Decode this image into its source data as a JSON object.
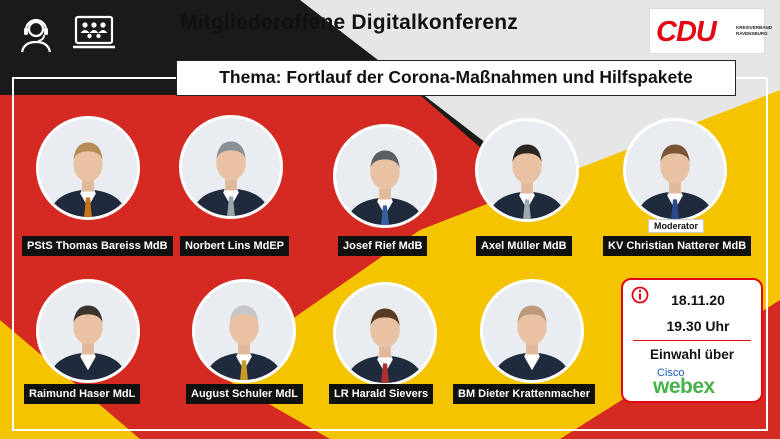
{
  "header": {
    "title": "Mitgliederoffene  Digitalkonferenz",
    "topic": "Thema: Fortlauf der Corona-Maßnahmen und Hilfspakete",
    "icons": [
      "headset-user-icon",
      "video-conference-icon"
    ]
  },
  "logo": {
    "mark": "CDU",
    "line1": "KREISVERBAND",
    "line2": "RAVENSBURG",
    "color": "#e30613"
  },
  "speakers": [
    {
      "name": "PStS Thomas Bareiss MdB",
      "tie": "#c9751f",
      "hair": "#b88a54"
    },
    {
      "name": "Norbert Lins MdEP",
      "tie": "#9aa4ad",
      "hair": "#8a8f96"
    },
    {
      "name": "Josef Rief MdB",
      "tie": "#3a5fa0",
      "hair": "#5b5f63"
    },
    {
      "name": "Axel Müller MdB",
      "tie": "#a0a7ae",
      "hair": "#2c2620"
    },
    {
      "name": "KV Christian Natterer MdB",
      "tie": "#2b4a8c",
      "hair": "#7a5535",
      "tag": "Moderator"
    },
    {
      "name": "Raimund Haser MdL",
      "tie": "",
      "hair": "#3b342c"
    },
    {
      "name": "August Schuler MdL",
      "tie": "#c89a2a",
      "hair": "#c7c7c7"
    },
    {
      "name": "LR Harald Sievers",
      "tie": "#b0312c",
      "hair": "#5b3a22"
    },
    {
      "name": "BM Dieter Krattenmacher",
      "tie": "",
      "hair": "#ba9a78"
    }
  ],
  "info": {
    "date": "18.11.20",
    "time": "19.30 Uhr",
    "dial_in": "Einwahl über",
    "provider_small": "Cisco",
    "provider_big": "webex",
    "accent": "#e30613"
  },
  "colors": {
    "black": "#1a1a1a",
    "red": "#d42a22",
    "gold": "#f5c400"
  }
}
